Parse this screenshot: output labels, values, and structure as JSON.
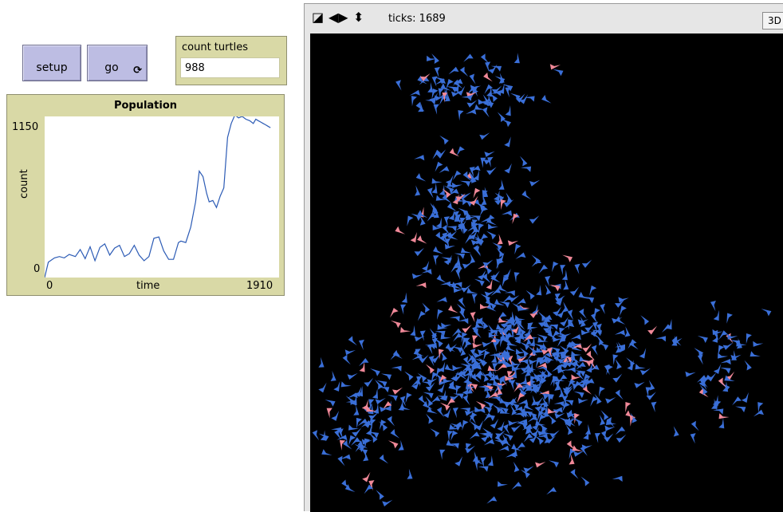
{
  "buttons": {
    "setup_label": "setup",
    "go_label": "go",
    "go_forever_icon": "forever-arrows-icon"
  },
  "monitor": {
    "label": "count turtles",
    "value": "988"
  },
  "plot": {
    "title": "Population",
    "y_max": "1150",
    "y_min": "0",
    "y_label": "count",
    "x_min": "0",
    "x_max": "1910",
    "x_label": "time",
    "line_color": "#2c5bb5"
  },
  "chart_data": {
    "type": "line",
    "title": "Population",
    "xlabel": "time",
    "ylabel": "count",
    "xlim": [
      0,
      1910
    ],
    "ylim": [
      0,
      1150
    ],
    "grid": false,
    "series": [
      {
        "x": [
          0,
          30,
          80,
          120,
          160,
          200,
          250,
          290,
          330,
          370,
          410,
          450,
          490,
          530,
          570,
          610,
          650,
          690,
          730,
          770,
          810,
          850,
          890,
          930,
          970,
          1010,
          1050,
          1090,
          1110,
          1150,
          1190,
          1230,
          1260,
          1290,
          1320,
          1340,
          1370,
          1400,
          1430,
          1460,
          1490,
          1520,
          1550,
          1580,
          1610,
          1640,
          1670,
          1700,
          1720,
          1740,
          1760,
          1780,
          1800,
          1820,
          1840
        ],
        "y": [
          0,
          110,
          140,
          150,
          140,
          165,
          150,
          200,
          135,
          220,
          120,
          215,
          240,
          160,
          210,
          230,
          150,
          170,
          230,
          160,
          120,
          150,
          280,
          290,
          190,
          130,
          130,
          250,
          260,
          250,
          360,
          540,
          760,
          720,
          600,
          540,
          550,
          500,
          580,
          640,
          1000,
          1100,
          1160,
          1140,
          1150,
          1130,
          1120,
          1100,
          1130,
          1120,
          1110,
          1100,
          1090,
          1080,
          1070
        ]
      }
    ]
  },
  "world": {
    "ticks_text": "ticks: 1689",
    "btn_3d": "3D",
    "icons": [
      "speed-edit-icon",
      "horizontal-arrows-icon",
      "vertical-arrows-icon"
    ],
    "background": "#000000",
    "turtle_colors": {
      "blue": "#3a6fd8",
      "pink": "#f08898"
    }
  }
}
